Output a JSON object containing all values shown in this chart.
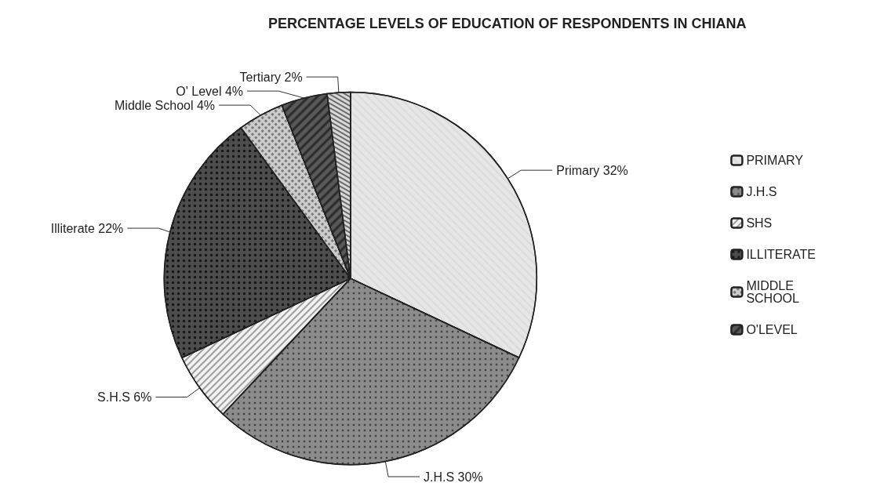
{
  "chart_data": {
    "type": "pie",
    "title": "PERCENTAGE LEVELS OF EDUCATION OF RESPONDENTS IN CHIANA",
    "categories": [
      "PRIMARY",
      "J.H.S",
      "SHS",
      "ILLITERATE",
      "MIDDLE SCHOOL",
      "O'LEVEL",
      null
    ],
    "values": [
      32,
      30,
      6,
      22,
      4,
      4,
      2
    ],
    "value_labels": [
      "Primary 32%",
      "J.H.S 30%",
      "S.H.S 6%",
      "Illiterate 22%",
      "Middle School 4%",
      "O' Level 4%",
      "Tertiary 2%"
    ],
    "colors": [
      "#e6e6e6",
      "#8c8c8c",
      "#f2f2f2",
      "#4d4d4d",
      "#cccccc",
      "#595959",
      "#d9d9d9"
    ],
    "legend": "right"
  }
}
